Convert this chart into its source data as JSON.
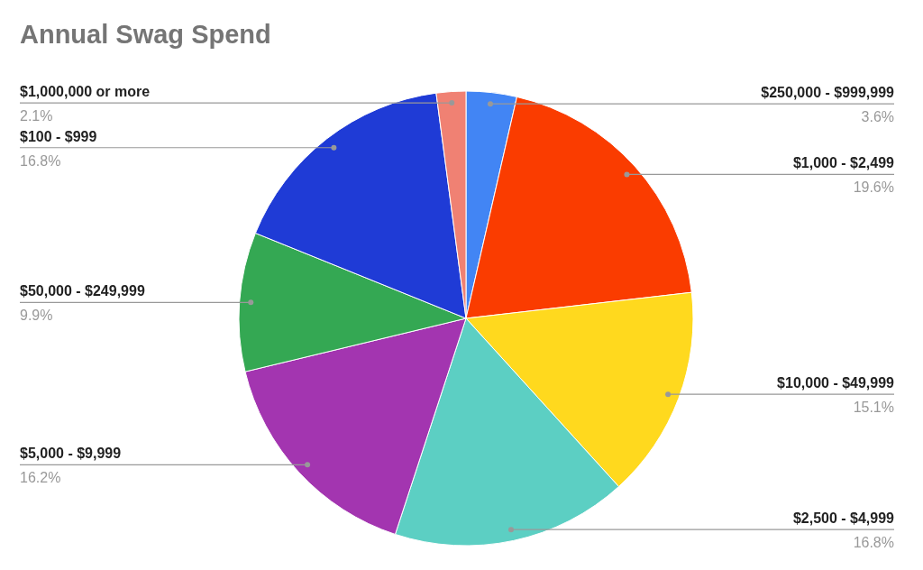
{
  "chart_data": {
    "type": "pie",
    "title": "Annual Swag Spend",
    "categories": [
      "$250,000 - $999,999",
      "$1,000 - $2,499",
      "$10,000 - $49,999",
      "$2,500 - $4,999",
      "$5,000 - $9,999",
      "$50,000 - $249,999",
      "$100 - $999",
      "$1,000,000 or more"
    ],
    "values": [
      3.6,
      19.6,
      15.1,
      16.8,
      16.2,
      9.9,
      16.8,
      2.1
    ],
    "colors": [
      "#4285f4",
      "#fa3c00",
      "#ffd91e",
      "#5ccfc3",
      "#a335b0",
      "#34a853",
      "#1f3bd6",
      "#f08173"
    ],
    "value_labels": [
      "3.6%",
      "19.6%",
      "15.1%",
      "16.8%",
      "16.2%",
      "9.9%",
      "16.8%",
      "2.1%"
    ]
  }
}
